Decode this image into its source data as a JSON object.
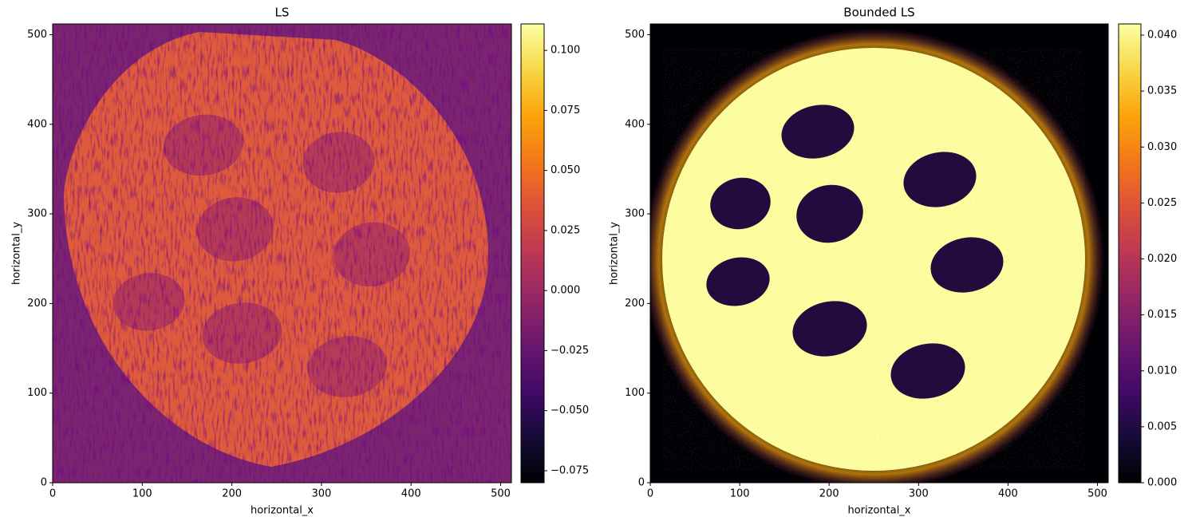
{
  "chart_data": [
    {
      "type": "heatmap",
      "title": "LS",
      "xlabel": "horizontal_x",
      "ylabel": "horizontal_y",
      "xlim": [
        0,
        512
      ],
      "ylim": [
        0,
        512
      ],
      "xticks": [
        0,
        100,
        200,
        300,
        400,
        500
      ],
      "yticks": [
        0,
        100,
        200,
        300,
        400,
        500
      ],
      "colorbar": {
        "cmap": "inferno",
        "lim": [
          -0.08,
          0.111
        ],
        "ticks": [
          {
            "value": -0.075,
            "label": "−0.075"
          },
          {
            "value": -0.05,
            "label": "−0.050"
          },
          {
            "value": -0.025,
            "label": "−0.025"
          },
          {
            "value": 0,
            "label": "0.000"
          },
          {
            "value": 0.025,
            "label": "0.025"
          },
          {
            "value": 0.05,
            "label": "0.050"
          },
          {
            "value": 0.075,
            "label": "0.075"
          },
          {
            "value": 0.1,
            "label": "0.100"
          }
        ]
      }
    },
    {
      "type": "heatmap",
      "title": "Bounded LS",
      "xlabel": "horizontal_x",
      "ylabel": "horizontal_y",
      "xlim": [
        0,
        512
      ],
      "ylim": [
        0,
        512
      ],
      "xticks": [
        0,
        100,
        200,
        300,
        400,
        500
      ],
      "yticks": [
        0,
        100,
        200,
        300,
        400,
        500
      ],
      "colorbar": {
        "cmap": "inferno",
        "lim": [
          0,
          0.041
        ],
        "ticks": [
          {
            "value": 0,
            "label": "0.000"
          },
          {
            "value": 0.005,
            "label": "0.005"
          },
          {
            "value": 0.01,
            "label": "0.010"
          },
          {
            "value": 0.015,
            "label": "0.015"
          },
          {
            "value": 0.02,
            "label": "0.020"
          },
          {
            "value": 0.025,
            "label": "0.025"
          },
          {
            "value": 0.03,
            "label": "0.030"
          },
          {
            "value": 0.035,
            "label": "0.035"
          },
          {
            "value": 0.04,
            "label": "0.040"
          }
        ]
      }
    }
  ]
}
